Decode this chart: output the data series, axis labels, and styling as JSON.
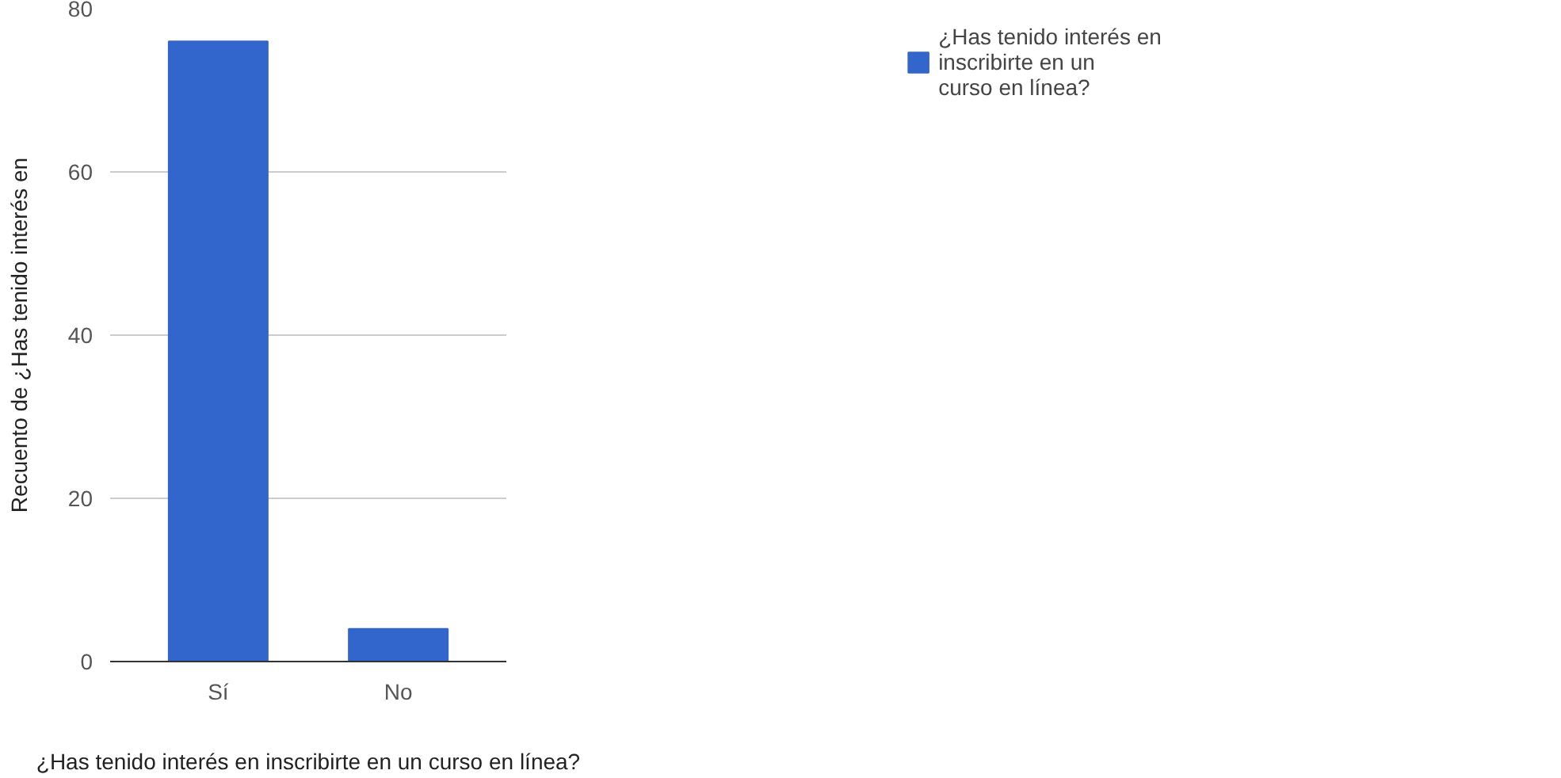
{
  "chart_data": {
    "type": "bar",
    "xlabel": "¿Has tenido interés en inscribirte en un curso en línea?",
    "ylabel": "Recuento de ¿Has tenido interés en",
    "categories": [
      "Sí",
      "No"
    ],
    "series": [
      {
        "name": "¿Has tenido interés en inscribirte en un curso en línea?",
        "color": "#3366cc",
        "values": [
          76,
          4
        ]
      }
    ],
    "ylim": [
      0,
      80
    ],
    "yticks": [
      0,
      20,
      40,
      60,
      80
    ],
    "grid": "y",
    "legend": "top right"
  }
}
